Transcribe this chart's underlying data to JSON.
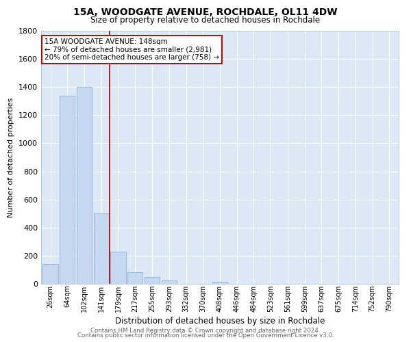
{
  "title1": "15A, WOODGATE AVENUE, ROCHDALE, OL11 4DW",
  "title2": "Size of property relative to detached houses in Rochdale",
  "xlabel": "Distribution of detached houses by size in Rochdale",
  "ylabel": "Number of detached properties",
  "bar_labels": [
    "26sqm",
    "64sqm",
    "102sqm",
    "141sqm",
    "179sqm",
    "217sqm",
    "255sqm",
    "293sqm",
    "332sqm",
    "370sqm",
    "408sqm",
    "446sqm",
    "484sqm",
    "523sqm",
    "561sqm",
    "599sqm",
    "637sqm",
    "675sqm",
    "714sqm",
    "752sqm",
    "790sqm"
  ],
  "bar_values": [
    140,
    1340,
    1400,
    500,
    230,
    85,
    50,
    25,
    0,
    0,
    15,
    0,
    0,
    0,
    0,
    0,
    0,
    0,
    0,
    0,
    0
  ],
  "bar_color": "#c5d8f0",
  "bar_edge_color": "#8ab0d8",
  "vline_color": "#aa0000",
  "vline_x": 3.5,
  "annotation_title": "15A WOODGATE AVENUE: 148sqm",
  "annotation_line1": "← 79% of detached houses are smaller (2,981)",
  "annotation_line2": "20% of semi-detached houses are larger (758) →",
  "ylim": [
    0,
    1800
  ],
  "yticks": [
    0,
    200,
    400,
    600,
    800,
    1000,
    1200,
    1400,
    1600,
    1800
  ],
  "footer1": "Contains HM Land Registry data © Crown copyright and database right 2024.",
  "footer2": "Contains public sector information licensed under the Open Government Licence v3.0.",
  "bg_color": "#dce8f5",
  "fig_bg_color": "#ffffff"
}
